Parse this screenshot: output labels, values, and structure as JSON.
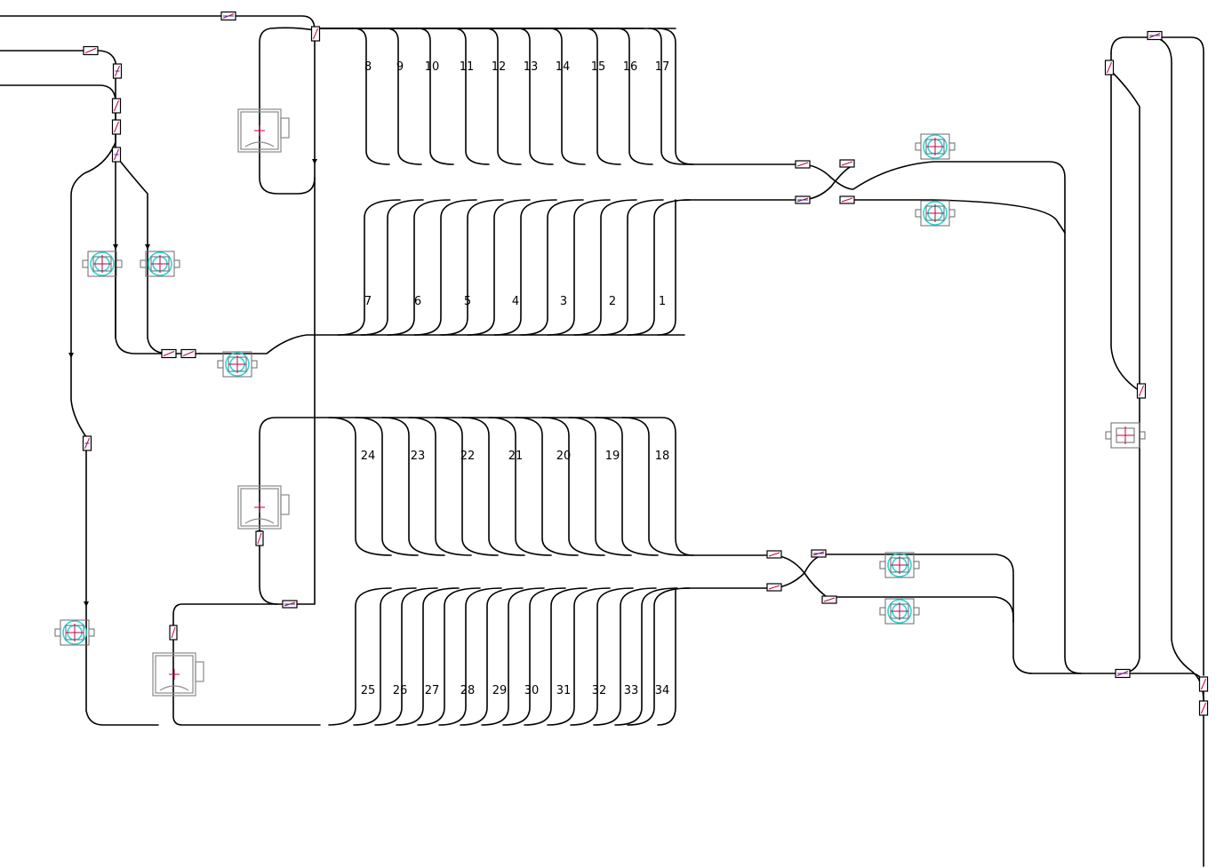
{
  "top_lanes": [
    "8",
    "9",
    "10",
    "11",
    "12",
    "13",
    "14",
    "15",
    "16",
    "17"
  ],
  "upper_lanes": [
    "7",
    "6",
    "5",
    "4",
    "3",
    "2",
    "1"
  ],
  "middle_lanes": [
    "24",
    "23",
    "22",
    "21",
    "20",
    "19",
    "18"
  ],
  "bottom_lanes": [
    "25",
    "26",
    "27",
    "28",
    "29",
    "30",
    "31",
    "32",
    "33",
    "34"
  ],
  "colors": {
    "track": "#000000",
    "switch_accent": "#c0004a",
    "switch_accent_alt": "#3030c0",
    "robot_highlight": "#2fd4d4",
    "station_outline": "#8a8a8a"
  },
  "icons": {
    "switch": "track-switch-icon",
    "station": "transfer-station-icon",
    "robot": "robot-cell-icon"
  }
}
